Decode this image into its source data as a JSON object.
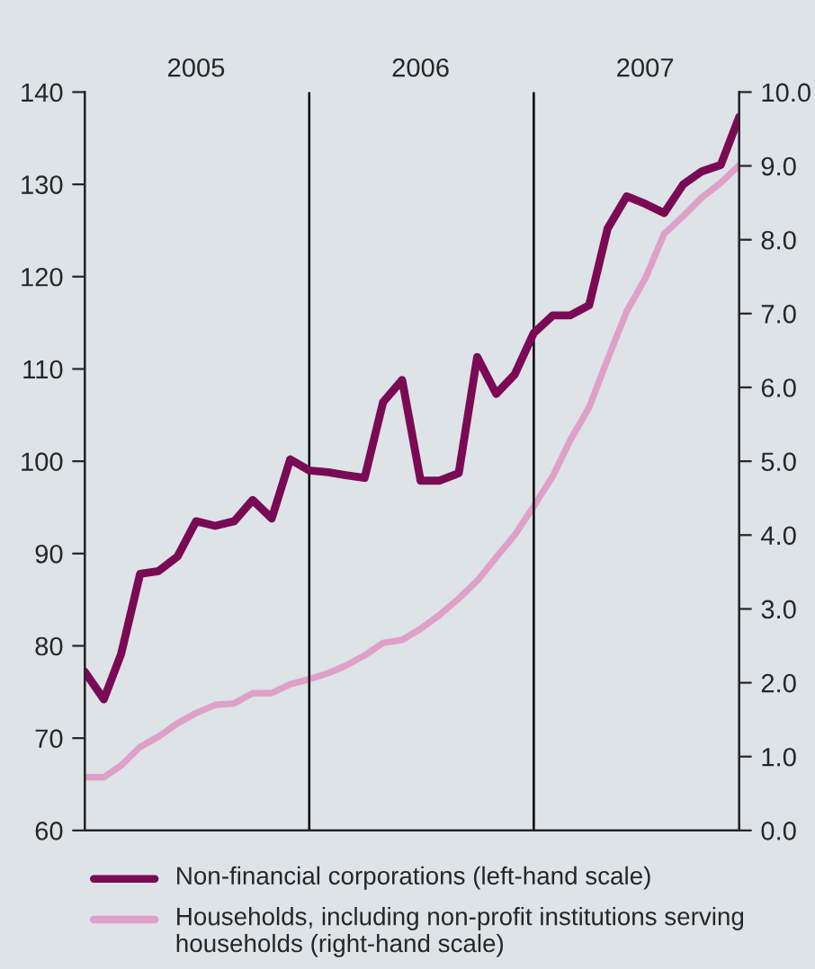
{
  "chart_data": {
    "type": "line",
    "x": [
      "2005-01",
      "2005-02",
      "2005-03",
      "2005-04",
      "2005-05",
      "2005-06",
      "2005-07",
      "2005-08",
      "2005-09",
      "2005-10",
      "2005-11",
      "2005-12",
      "2006-01",
      "2006-02",
      "2006-03",
      "2006-04",
      "2006-05",
      "2006-06",
      "2006-07",
      "2006-08",
      "2006-09",
      "2006-10",
      "2006-11",
      "2006-12",
      "2007-01",
      "2007-02",
      "2007-03",
      "2007-04",
      "2007-05",
      "2007-06",
      "2007-07",
      "2007-08",
      "2007-09",
      "2007-10",
      "2007-11",
      "2007-12"
    ],
    "series": [
      {
        "name": "Non-financial corporations (left-hand scale)",
        "color": "#7a0a55",
        "values": [
          77.2,
          74.2,
          79.1,
          87.8,
          88.1,
          89.7,
          93.5,
          93.0,
          93.5,
          95.8,
          93.8,
          100.2,
          99.0,
          98.8,
          98.5,
          98.2,
          106.4,
          108.8,
          97.9,
          97.9,
          98.7,
          111.3,
          107.3,
          109.4,
          113.9,
          115.8,
          115.8,
          116.9,
          125.2,
          128.7,
          127.9,
          126.9,
          130.0,
          131.4,
          132.1,
          137.3
        ]
      },
      {
        "name": "Households, including non-profit institutions serving households (right-hand scale)",
        "color": "#dea0c8",
        "axis": "y2",
        "values": [
          0.72,
          0.72,
          0.88,
          1.13,
          1.27,
          1.45,
          1.59,
          1.7,
          1.72,
          1.86,
          1.86,
          1.98,
          2.05,
          2.13,
          2.23,
          2.37,
          2.54,
          2.58,
          2.73,
          2.92,
          3.14,
          3.38,
          3.7,
          4.0,
          4.39,
          4.8,
          5.28,
          5.73,
          6.38,
          7.03,
          7.47,
          8.08,
          8.32,
          8.57,
          8.77,
          9.01
        ]
      }
    ],
    "xlim": [
      "2005-01",
      "2007-12"
    ],
    "xticks": [
      {
        "value": "2005-07",
        "label": "2005"
      },
      {
        "value": "2006-07",
        "label": "2006"
      },
      {
        "value": "2007-07",
        "label": "2007"
      }
    ],
    "ylim": [
      60,
      140
    ],
    "yticks": [
      60,
      70,
      80,
      90,
      100,
      110,
      120,
      130,
      140
    ],
    "y2lim": [
      0,
      10
    ],
    "y2ticks": [
      {
        "value": 0,
        "label": "0.0"
      },
      {
        "value": 1,
        "label": "1.0"
      },
      {
        "value": 2,
        "label": "2.0"
      },
      {
        "value": 3,
        "label": "3.0"
      },
      {
        "value": 4,
        "label": "4.0"
      },
      {
        "value": 5,
        "label": "5.0"
      },
      {
        "value": 6,
        "label": "6.0"
      },
      {
        "value": 7,
        "label": "7.0"
      },
      {
        "value": 8,
        "label": "8.0"
      },
      {
        "value": 9,
        "label": "9.0"
      },
      {
        "value": 10,
        "label": "10.0"
      }
    ],
    "ref_lines": [
      {
        "axis": "x",
        "value": "2006-01",
        "color": "#000000"
      },
      {
        "axis": "x",
        "value": "2007-01",
        "color": "#000000"
      }
    ],
    "grid": false,
    "legend": "bottom",
    "marker": "none",
    "line_style": "solid"
  }
}
